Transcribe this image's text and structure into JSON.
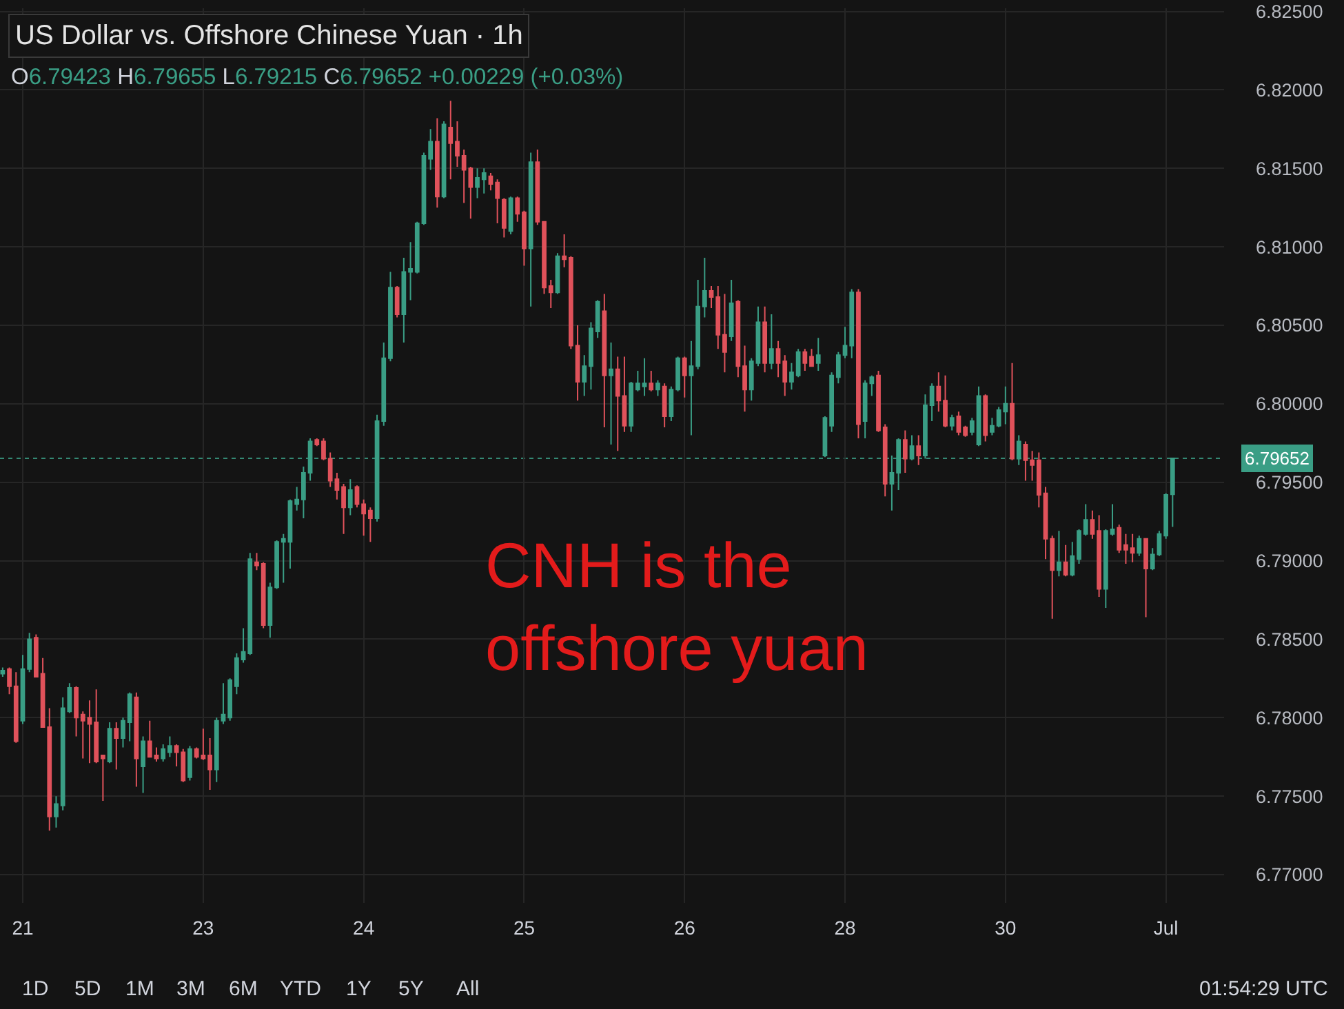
{
  "chart_data": {
    "type": "candlestick",
    "title": "US Dollar vs. Offshore Chinese Yuan · 1h",
    "subtitle": "O6.79423 H6.79655 L6.79215 C6.79652 +0.00229 (+0.03%)",
    "categories": [
      null,
      null,
      null,
      "21",
      null,
      null,
      null,
      null,
      null,
      null,
      null,
      null,
      null,
      null,
      null,
      null,
      null,
      null,
      null,
      null,
      null,
      null,
      null,
      null,
      null,
      null,
      null,
      null,
      null,
      null,
      "23",
      null,
      null,
      null,
      null,
      null,
      null,
      null,
      null,
      null,
      null,
      null,
      null,
      null,
      null,
      null,
      null,
      null,
      null,
      null,
      null,
      null,
      null,
      null,
      "24",
      null,
      null,
      null,
      null,
      null,
      null,
      null,
      null,
      null,
      null,
      null,
      null,
      null,
      null,
      null,
      null,
      null,
      null,
      null,
      null,
      null,
      null,
      null,
      "25",
      null,
      null,
      null,
      null,
      null,
      null,
      null,
      null,
      null,
      null,
      null,
      null,
      null,
      null,
      null,
      null,
      null,
      null,
      null,
      null,
      null,
      null,
      null,
      "26",
      null,
      null,
      null,
      null,
      null,
      null,
      null,
      null,
      null,
      null,
      null,
      null,
      null,
      null,
      null,
      null,
      null,
      null,
      null,
      null,
      null,
      null,
      null,
      "28",
      null,
      null,
      null,
      null,
      null,
      null,
      null,
      null,
      null,
      null,
      null,
      null,
      null,
      null,
      null,
      null,
      null,
      null,
      null,
      null,
      null,
      null,
      null,
      "30",
      null,
      null,
      null,
      null,
      null,
      null,
      null,
      null,
      null,
      null,
      null,
      null,
      null,
      null,
      null,
      null,
      null,
      null,
      null,
      null,
      null,
      null,
      null,
      "Jul",
      null
    ],
    "ohlc": [
      [
        6.7828,
        6.7832,
        6.7826,
        6.783
      ],
      [
        6.7831,
        6.7832,
        6.7815,
        6.782
      ],
      [
        6.782,
        6.7829,
        6.7784,
        6.7785
      ],
      [
        6.7798,
        6.784,
        6.7796,
        6.7831
      ],
      [
        6.7831,
        6.7854,
        6.7829,
        6.785
      ],
      [
        6.7851,
        6.7853,
        6.7826,
        6.7826
      ],
      [
        6.7828,
        6.7838,
        6.7794,
        6.7794
      ],
      [
        6.7794,
        6.7806,
        6.7728,
        6.7737
      ],
      [
        6.7737,
        6.775,
        6.773,
        6.7745
      ],
      [
        6.7744,
        6.7813,
        6.7741,
        6.7806
      ],
      [
        6.7804,
        6.7822,
        6.7803,
        6.7819
      ],
      [
        6.7819,
        6.782,
        6.7788,
        6.78
      ],
      [
        6.7802,
        6.7804,
        6.7774,
        6.7798
      ],
      [
        6.78,
        6.7811,
        6.7771,
        6.7796
      ],
      [
        6.7797,
        6.7818,
        6.7771,
        6.7772
      ],
      [
        6.7776,
        6.7776,
        6.7747,
        6.7774
      ],
      [
        6.7772,
        6.7797,
        6.7771,
        6.7793
      ],
      [
        6.7793,
        6.7797,
        6.7767,
        6.7787
      ],
      [
        6.7787,
        6.78,
        6.7781,
        6.7798
      ],
      [
        6.7797,
        6.7816,
        6.7785,
        6.7815
      ],
      [
        6.7813,
        6.7816,
        6.7756,
        6.7774
      ],
      [
        6.7769,
        6.7788,
        6.7752,
        6.7785
      ],
      [
        6.7785,
        6.7798,
        6.7775,
        6.7775
      ],
      [
        6.7776,
        6.7781,
        6.7772,
        6.7774
      ],
      [
        6.7774,
        6.7783,
        6.7772,
        6.778
      ],
      [
        6.7778,
        6.7788,
        6.7775,
        6.7782
      ],
      [
        6.7782,
        6.7783,
        6.7769,
        6.7778
      ],
      [
        6.7778,
        6.778,
        6.7759,
        6.776
      ],
      [
        6.7762,
        6.7782,
        6.776,
        6.778
      ],
      [
        6.778,
        6.7781,
        6.7774,
        6.7775
      ],
      [
        6.7776,
        6.7793,
        6.7773,
        6.7774
      ],
      [
        6.7776,
        6.7787,
        6.7754,
        6.7767
      ],
      [
        6.7767,
        6.78,
        6.7759,
        6.7798
      ],
      [
        6.7798,
        6.7822,
        6.7796,
        6.7802
      ],
      [
        6.78,
        6.7825,
        6.7798,
        6.7824
      ],
      [
        6.782,
        6.7841,
        6.7815,
        6.7838
      ],
      [
        6.7837,
        6.7857,
        6.7835,
        6.7842
      ],
      [
        6.7841,
        6.7905,
        6.784,
        6.7901
      ],
      [
        6.7899,
        6.7905,
        6.7894,
        6.7897
      ],
      [
        6.7898,
        6.7899,
        6.7857,
        6.7859
      ],
      [
        6.7859,
        6.7886,
        6.7851,
        6.7883
      ],
      [
        6.7883,
        6.7913,
        6.7882,
        6.7912
      ],
      [
        6.7912,
        6.7917,
        6.7886,
        6.7914
      ],
      [
        6.7912,
        6.7939,
        6.7895,
        6.7938
      ],
      [
        6.7936,
        6.7947,
        6.7932,
        6.7939
      ],
      [
        6.7939,
        6.796,
        6.7927,
        6.7956
      ],
      [
        6.7956,
        6.7978,
        6.7951,
        6.7976
      ],
      [
        6.7977,
        6.7978,
        6.7973,
        6.7974
      ],
      [
        6.7976,
        6.7978,
        6.7964,
        6.7965
      ],
      [
        6.7965,
        6.7969,
        6.7947,
        6.7951
      ],
      [
        6.7952,
        6.7956,
        6.7939,
        6.7945
      ],
      [
        6.7947,
        6.7949,
        6.7917,
        6.7934
      ],
      [
        6.7934,
        6.7952,
        6.7929,
        6.7945
      ],
      [
        6.7947,
        6.7948,
        6.7934,
        6.7936
      ],
      [
        6.7936,
        6.7939,
        6.7916,
        6.793
      ],
      [
        6.7932,
        6.7934,
        6.7912,
        6.7927
      ],
      [
        6.7927,
        6.7993,
        6.7925,
        6.7989
      ],
      [
        6.7989,
        6.8039,
        6.7986,
        6.8029
      ],
      [
        6.8029,
        6.8084,
        6.8027,
        6.8074
      ],
      [
        6.8074,
        6.8075,
        6.8055,
        6.8057
      ],
      [
        6.8057,
        6.8093,
        6.8039,
        6.8084
      ],
      [
        6.8084,
        6.8103,
        6.8066,
        6.8086
      ],
      [
        6.8084,
        6.8116,
        6.8083,
        6.8115
      ],
      [
        6.8115,
        6.816,
        6.8114,
        6.8158
      ],
      [
        6.8156,
        6.8175,
        6.8149,
        6.8167
      ],
      [
        6.8167,
        6.8182,
        6.8125,
        6.8132
      ],
      [
        6.8132,
        6.818,
        6.8131,
        6.8178
      ],
      [
        6.8176,
        6.8193,
        6.8143,
        6.8166
      ],
      [
        6.8167,
        6.818,
        6.8151,
        6.8158
      ],
      [
        6.8158,
        6.8162,
        6.8128,
        6.8149
      ],
      [
        6.815,
        6.8151,
        6.8118,
        6.8138
      ],
      [
        6.8138,
        6.815,
        6.8131,
        6.8144
      ],
      [
        6.8143,
        6.815,
        6.8134,
        6.8147
      ],
      [
        6.8145,
        6.8147,
        6.8136,
        6.814
      ],
      [
        6.8141,
        6.8143,
        6.8115,
        6.8131
      ],
      [
        6.813,
        6.8131,
        6.8106,
        6.8112
      ],
      [
        6.811,
        6.8132,
        6.8108,
        6.8131
      ],
      [
        6.8131,
        6.8132,
        6.8116,
        6.8121
      ],
      [
        6.8122,
        6.8123,
        6.8088,
        6.8099
      ],
      [
        6.8099,
        6.816,
        6.8062,
        6.8154
      ],
      [
        6.8154,
        6.8162,
        6.8114,
        6.8116
      ],
      [
        6.8116,
        6.8116,
        6.807,
        6.8074
      ],
      [
        6.8075,
        6.8079,
        6.8061,
        6.8071
      ],
      [
        6.8071,
        6.8096,
        6.807,
        6.8094
      ],
      [
        6.8094,
        6.8108,
        6.8087,
        6.8092
      ],
      [
        6.8093,
        6.8094,
        6.8035,
        6.8037
      ],
      [
        6.8037,
        6.805,
        6.8002,
        6.8014
      ],
      [
        6.8014,
        6.8031,
        6.8005,
        6.8024
      ],
      [
        6.8024,
        6.8052,
        6.8009,
        6.8048
      ],
      [
        6.8046,
        6.8066,
        6.8042,
        6.8065
      ],
      [
        6.8059,
        6.807,
        6.7985,
        6.8018
      ],
      [
        6.8018,
        6.8039,
        6.7974,
        6.8022
      ],
      [
        6.8022,
        6.803,
        6.797,
        6.8005
      ],
      [
        6.8005,
        6.803,
        6.7982,
        6.7986
      ],
      [
        6.7986,
        6.8014,
        6.7982,
        6.8013
      ],
      [
        6.8009,
        6.8021,
        6.8008,
        6.8013
      ],
      [
        6.8011,
        6.8029,
        6.8005,
        6.8013
      ],
      [
        6.8013,
        6.8021,
        6.8008,
        6.8009
      ],
      [
        6.8009,
        6.8015,
        6.8005,
        6.8013
      ],
      [
        6.8011,
        6.8013,
        6.7985,
        6.7992
      ],
      [
        6.7992,
        6.8011,
        6.7989,
        6.8009
      ],
      [
        6.8009,
        6.803,
        6.8008,
        6.8029
      ],
      [
        6.8029,
        6.803,
        6.8004,
        6.8018
      ],
      [
        6.8018,
        6.804,
        6.798,
        6.8024
      ],
      [
        6.8024,
        6.8079,
        6.8022,
        6.8062
      ],
      [
        6.8062,
        6.8093,
        6.8055,
        6.8072
      ],
      [
        6.8072,
        6.8075,
        6.8061,
        6.8068
      ],
      [
        6.8068,
        6.8075,
        6.8035,
        6.8044
      ],
      [
        6.8044,
        6.807,
        6.802,
        6.8033
      ],
      [
        6.8043,
        6.8079,
        6.804,
        6.8064
      ],
      [
        6.8065,
        6.8066,
        6.8017,
        6.8024
      ],
      [
        6.8024,
        6.8037,
        6.7995,
        6.8009
      ],
      [
        6.8009,
        6.8029,
        6.8002,
        6.8027
      ],
      [
        6.8026,
        6.8062,
        6.8024,
        6.8052
      ],
      [
        6.8052,
        6.8062,
        6.802,
        6.8026
      ],
      [
        6.8026,
        6.8057,
        6.8022,
        6.8035
      ],
      [
        6.8035,
        6.804,
        6.8017,
        6.8026
      ],
      [
        6.8027,
        6.8031,
        6.8005,
        6.8014
      ],
      [
        6.8014,
        6.8026,
        6.8009,
        6.802
      ],
      [
        6.8018,
        6.8035,
        6.8017,
        6.8033
      ],
      [
        6.8033,
        6.8035,
        6.8021,
        6.8026
      ],
      [
        6.803,
        6.8035,
        6.8024,
        6.8024
      ],
      [
        6.8026,
        6.8042,
        6.8021,
        6.8031
      ],
      [
        6.7967,
        6.7992,
        6.7966,
        6.7991
      ],
      [
        6.7986,
        6.802,
        6.7982,
        6.8018
      ],
      [
        6.8017,
        6.8033,
        6.8013,
        6.8031
      ],
      [
        6.8031,
        6.8049,
        6.8029,
        6.8037
      ],
      [
        6.8037,
        6.8073,
        6.8029,
        6.8071
      ],
      [
        6.8071,
        6.8073,
        6.7978,
        6.7987
      ],
      [
        6.7989,
        6.8015,
        6.7978,
        6.8013
      ],
      [
        6.8013,
        6.8018,
        6.8005,
        6.8017
      ],
      [
        6.8018,
        6.8021,
        6.7982,
        6.7983
      ],
      [
        6.7985,
        6.7987,
        6.7941,
        6.7949
      ],
      [
        6.7949,
        6.7967,
        6.7932,
        6.7956
      ],
      [
        6.7956,
        6.7978,
        6.7945,
        6.7977
      ],
      [
        6.7977,
        6.7983,
        6.7956,
        6.7965
      ],
      [
        6.7965,
        6.798,
        6.7964,
        6.7973
      ],
      [
        6.7973,
        6.798,
        6.7961,
        6.7967
      ],
      [
        6.7967,
        6.8006,
        6.7965,
        6.7999
      ],
      [
        6.7999,
        6.8013,
        6.7989,
        6.8011
      ],
      [
        6.8011,
        6.802,
        6.7995,
        6.8002
      ],
      [
        6.8002,
        6.8018,
        6.7985,
        6.7986
      ],
      [
        6.7986,
        6.7993,
        6.7983,
        6.7991
      ],
      [
        6.7992,
        6.7995,
        6.798,
        6.7982
      ],
      [
        6.7985,
        6.7986,
        6.7979,
        6.798
      ],
      [
        6.7982,
        6.7991,
        6.798,
        6.7989
      ],
      [
        6.7974,
        6.8011,
        6.7973,
        6.8005
      ],
      [
        6.8005,
        6.8006,
        6.7976,
        6.798
      ],
      [
        6.7982,
        6.7991,
        6.798,
        6.7986
      ],
      [
        6.7986,
        6.7998,
        6.7985,
        6.7996
      ],
      [
        6.7995,
        6.8011,
        6.7987,
        6.8
      ],
      [
        6.8,
        6.8026,
        6.7964,
        6.7965
      ],
      [
        6.7965,
        6.798,
        6.7961,
        6.7976
      ],
      [
        6.7974,
        6.7976,
        6.7951,
        6.7964
      ],
      [
        6.7964,
        6.797,
        6.7951,
        6.7961
      ],
      [
        6.7964,
        6.7969,
        6.7934,
        6.7942
      ],
      [
        6.7943,
        6.7947,
        6.7901,
        6.7914
      ],
      [
        6.7914,
        6.7916,
        6.7863,
        6.7894
      ],
      [
        6.7894,
        6.7919,
        6.789,
        6.7899
      ],
      [
        6.7899,
        6.791,
        6.789,
        6.7891
      ],
      [
        6.7891,
        6.7912,
        6.789,
        6.7903
      ],
      [
        6.7901,
        6.792,
        6.7898,
        6.7919
      ],
      [
        6.7917,
        6.7936,
        6.7916,
        6.7926
      ],
      [
        6.7926,
        6.7932,
        6.7914,
        6.7917
      ],
      [
        6.7919,
        6.7929,
        6.7877,
        6.7882
      ],
      [
        6.7882,
        6.792,
        6.787,
        6.7919
      ],
      [
        6.7917,
        6.7936,
        6.7916,
        6.792
      ],
      [
        6.7921,
        6.7923,
        6.7905,
        6.7907
      ],
      [
        6.791,
        6.7917,
        6.7898,
        6.7907
      ],
      [
        6.7908,
        6.7917,
        6.7899,
        6.7905
      ],
      [
        6.7905,
        6.7916,
        6.7903,
        6.7914
      ],
      [
        6.7914,
        6.7914,
        6.7864,
        6.7895
      ],
      [
        6.7895,
        6.7908,
        6.7894,
        6.7904
      ],
      [
        6.7904,
        6.7919,
        6.7903,
        6.7917
      ],
      [
        6.7916,
        6.7943,
        6.7914,
        6.7942
      ],
      [
        6.79423,
        6.79655,
        6.79215,
        6.79652
      ]
    ],
    "colors": [
      "#3a9e85",
      "#e0525b",
      "#e0525b",
      "#3a9e85",
      "#3a9e85",
      "#e0525b",
      "#e0525b",
      "#e0525b",
      "#3a9e85",
      "#3a9e85",
      "#3a9e85",
      "#e0525b",
      "#e0525b",
      "#e0525b",
      "#e0525b",
      "#e0525b",
      "#3a9e85",
      "#e0525b",
      "#3a9e85",
      "#3a9e85",
      "#e0525b",
      "#3a9e85",
      "#e0525b",
      "#e0525b",
      "#3a9e85",
      "#3a9e85",
      "#e0525b",
      "#e0525b",
      "#3a9e85",
      "#e0525b",
      "#e0525b",
      "#e0525b",
      "#3a9e85",
      "#3a9e85",
      "#3a9e85",
      "#3a9e85",
      "#3a9e85",
      "#3a9e85",
      "#e0525b",
      "#e0525b",
      "#3a9e85",
      "#3a9e85",
      "#3a9e85",
      "#3a9e85",
      "#3a9e85",
      "#3a9e85",
      "#3a9e85",
      "#e0525b",
      "#e0525b",
      "#e0525b",
      "#e0525b",
      "#e0525b",
      "#3a9e85",
      "#e0525b",
      "#e0525b",
      "#e0525b",
      "#3a9e85",
      "#3a9e85",
      "#3a9e85",
      "#e0525b",
      "#3a9e85",
      "#3a9e85",
      "#3a9e85",
      "#3a9e85",
      "#3a9e85",
      "#e0525b",
      "#3a9e85",
      "#e0525b",
      "#e0525b",
      "#e0525b",
      "#e0525b",
      "#3a9e85",
      "#3a9e85",
      "#e0525b",
      "#e0525b",
      "#e0525b",
      "#3a9e85",
      "#e0525b",
      "#e0525b",
      "#3a9e85",
      "#e0525b",
      "#e0525b",
      "#e0525b",
      "#3a9e85",
      "#e0525b",
      "#e0525b",
      "#e0525b",
      "#3a9e85",
      "#3a9e85",
      "#3a9e85",
      "#e0525b",
      "#3a9e85",
      "#e0525b",
      "#e0525b",
      "#3a9e85",
      "#3a9e85",
      "#3a9e85",
      "#e0525b",
      "#3a9e85",
      "#e0525b",
      "#3a9e85",
      "#3a9e85",
      "#e0525b",
      "#3a9e85",
      "#3a9e85",
      "#3a9e85",
      "#e0525b",
      "#e0525b",
      "#e0525b",
      "#3a9e85",
      "#e0525b",
      "#e0525b",
      "#3a9e85",
      "#3a9e85",
      "#e0525b",
      "#3a9e85",
      "#e0525b",
      "#e0525b",
      "#3a9e85",
      "#3a9e85",
      "#e0525b",
      "#e0525b",
      "#3a9e85",
      "#3a9e85",
      "#3a9e85",
      "#3a9e85",
      "#3a9e85",
      "#3a9e85",
      "#e0525b",
      "#3a9e85",
      "#3a9e85",
      "#e0525b",
      "#e0525b",
      "#3a9e85",
      "#3a9e85",
      "#e0525b",
      "#3a9e85",
      "#e0525b",
      "#3a9e85",
      "#3a9e85",
      "#e0525b",
      "#e0525b",
      "#3a9e85",
      "#e0525b",
      "#e0525b",
      "#3a9e85",
      "#3a9e85",
      "#e0525b",
      "#3a9e85",
      "#3a9e85",
      "#3a9e85",
      "#e0525b",
      "#3a9e85",
      "#e0525b",
      "#e0525b",
      "#e0525b",
      "#e0525b",
      "#e0525b",
      "#3a9e85",
      "#e0525b",
      "#3a9e85",
      "#3a9e85",
      "#3a9e85",
      "#e0525b",
      "#e0525b",
      "#3a9e85",
      "#3a9e85",
      "#e0525b",
      "#e0525b",
      "#e0525b",
      "#3a9e85",
      "#e0525b",
      "#3a9e85",
      "#3a9e85",
      "#3a9e85",
      "#3a9e85"
    ],
    "ylim": [
      6.7682,
      6.8252
    ],
    "yticks": [
      {
        "value": 6.77,
        "label": "6.77000"
      },
      {
        "value": 6.775,
        "label": "6.77500"
      },
      {
        "value": 6.78,
        "label": "6.78000"
      },
      {
        "value": 6.785,
        "label": "6.78500"
      },
      {
        "value": 6.79,
        "label": "6.79000"
      },
      {
        "value": 6.795,
        "label": "6.79500"
      },
      {
        "value": 6.8,
        "label": "6.80000"
      },
      {
        "value": 6.805,
        "label": "6.80500"
      },
      {
        "value": 6.81,
        "label": "6.81000"
      },
      {
        "value": 6.815,
        "label": "6.81500"
      },
      {
        "value": 6.82,
        "label": "6.82000"
      },
      {
        "value": 6.825,
        "label": "6.82500"
      }
    ],
    "grid": true,
    "ref_lines": [
      {
        "axis": "y",
        "value": 6.79652,
        "label": "6.79652",
        "color": "#3a9e85",
        "line_style": "dotted"
      }
    ],
    "annotations": [
      "CNH is the\noffshore yuan",
      "1D",
      "5D",
      "1M",
      "3M",
      "6M",
      "YTD",
      "1Y",
      "5Y",
      "All",
      "01:54:29 UTC"
    ]
  }
}
